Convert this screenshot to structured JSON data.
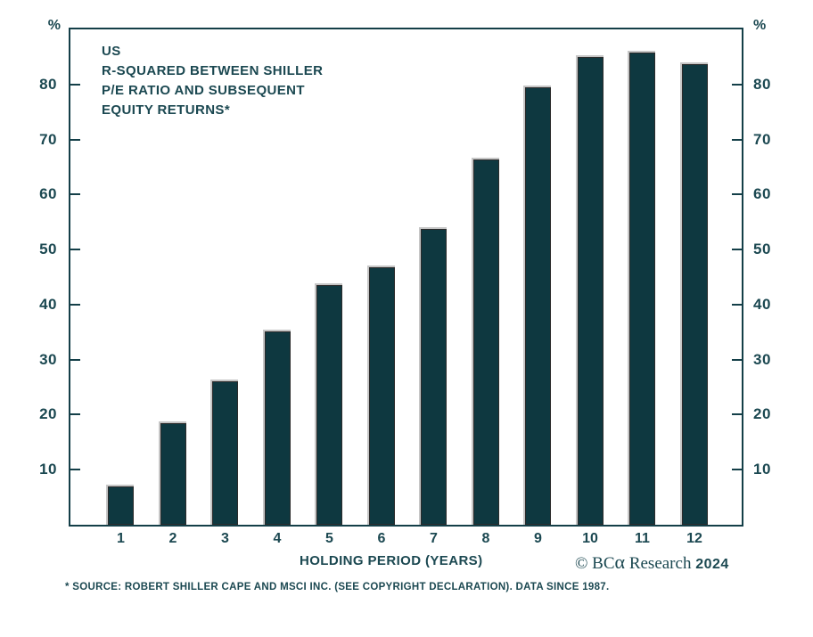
{
  "chart_data": {
    "type": "bar",
    "title_lines": [
      "US",
      "R-SQUARED BETWEEN SHILLER",
      "P/E RATIO AND SUBSEQUENT",
      "EQUITY RETURNS*"
    ],
    "categories": [
      "1",
      "2",
      "3",
      "4",
      "5",
      "6",
      "7",
      "8",
      "9",
      "10",
      "11",
      "12"
    ],
    "values": [
      7.0,
      18.4,
      26.0,
      35.1,
      43.5,
      46.8,
      53.7,
      66.3,
      79.4,
      85.0,
      85.8,
      83.7
    ],
    "xlabel": "HOLDING PERIOD (YEARS)",
    "ylabel": "",
    "y_axis_unit": "%",
    "y_ticks": [
      10,
      20,
      30,
      40,
      50,
      60,
      70,
      80
    ],
    "ylim": [
      0,
      90
    ],
    "grid": false,
    "legend": "none",
    "dual_y_axis": true
  },
  "footer": {
    "copyright": {
      "prefix": "© BC",
      "alpha": "α",
      "middle": " Research ",
      "year": "2024"
    },
    "footnote": "* SOURCE: ROBERT SHILLER CAPE AND MSCI INC. (SEE COPYRIGHT DECLARATION). DATA SINCE 1987."
  },
  "colors": {
    "bar": "#0e3840",
    "ink": "#1b4851",
    "frame": "#143f48",
    "highlight": "#c6c6c6"
  }
}
